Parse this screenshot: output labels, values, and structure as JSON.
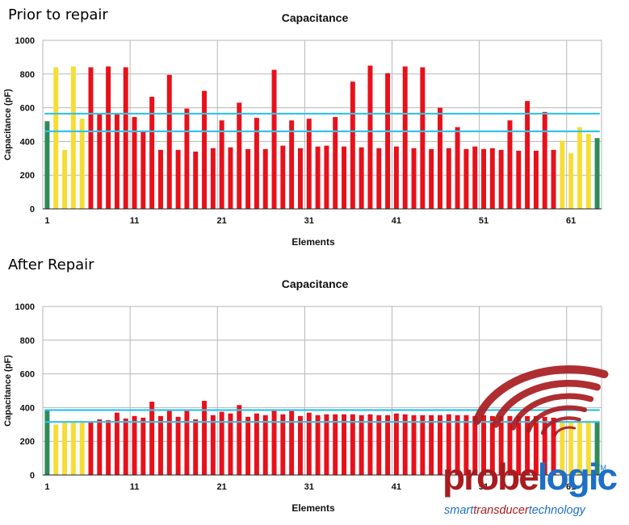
{
  "sections": {
    "top_label": "Prior to repair",
    "bottom_label": "After Repair"
  },
  "colors": {
    "red": "#e8101a",
    "yellow": "#f6dd35",
    "green": "#2e8b57",
    "threshold": "#33c3e8",
    "grid": "#b7b7b7",
    "logo_red": "#a81c1f",
    "logo_blue": "#1e6fc6"
  },
  "logo": {
    "word_part1": "probe",
    "word_part2": "logic",
    "tm": "TM",
    "tagline_part1": "smart",
    "tagline_part2": "transducer",
    "tagline_part3": "technology"
  },
  "chart_data": [
    {
      "type": "bar",
      "title": "Capacitance",
      "xlabel": "Elements",
      "ylabel": "Capacitance (pF)",
      "ylim": [
        0,
        1000
      ],
      "yticks": [
        0,
        200,
        400,
        600,
        800,
        1000
      ],
      "xticks": [
        1,
        11,
        21,
        31,
        41,
        51,
        61
      ],
      "grid": true,
      "thresholds": [
        565,
        460
      ],
      "x": [
        1,
        2,
        3,
        4,
        5,
        6,
        7,
        8,
        9,
        10,
        11,
        12,
        13,
        14,
        15,
        16,
        17,
        18,
        19,
        20,
        21,
        22,
        23,
        24,
        25,
        26,
        27,
        28,
        29,
        30,
        31,
        32,
        33,
        34,
        35,
        36,
        37,
        38,
        39,
        40,
        41,
        42,
        43,
        44,
        45,
        46,
        47,
        48,
        49,
        50,
        51,
        52,
        53,
        54,
        55,
        56,
        57,
        58,
        59,
        60,
        61,
        62,
        63,
        64
      ],
      "values": [
        520,
        840,
        350,
        845,
        535,
        840,
        565,
        845,
        565,
        840,
        545,
        455,
        665,
        350,
        795,
        350,
        595,
        340,
        700,
        360,
        525,
        365,
        630,
        355,
        540,
        355,
        825,
        375,
        525,
        360,
        535,
        370,
        375,
        545,
        370,
        755,
        365,
        850,
        360,
        805,
        370,
        845,
        360,
        840,
        355,
        600,
        360,
        485,
        355,
        370,
        355,
        360,
        350,
        525,
        345,
        640,
        345,
        575,
        350,
        405,
        330,
        485,
        445,
        420
      ],
      "bar_colors": [
        "green",
        "yellow",
        "yellow",
        "yellow",
        "yellow",
        "red",
        "red",
        "red",
        "red",
        "red",
        "red",
        "red",
        "red",
        "red",
        "red",
        "red",
        "red",
        "red",
        "red",
        "red",
        "red",
        "red",
        "red",
        "red",
        "red",
        "red",
        "red",
        "red",
        "red",
        "red",
        "red",
        "red",
        "red",
        "red",
        "red",
        "red",
        "red",
        "red",
        "red",
        "red",
        "red",
        "red",
        "red",
        "red",
        "red",
        "red",
        "red",
        "red",
        "red",
        "red",
        "red",
        "red",
        "red",
        "red",
        "red",
        "red",
        "red",
        "red",
        "red",
        "yellow",
        "yellow",
        "yellow",
        "yellow",
        "green"
      ]
    },
    {
      "type": "bar",
      "title": "Capacitance",
      "xlabel": "Elements",
      "ylabel": "Capacitance (pF)",
      "ylim": [
        0,
        1000
      ],
      "yticks": [
        0,
        200,
        400,
        600,
        800,
        1000
      ],
      "xticks": [
        1,
        11,
        21,
        31,
        41,
        51,
        61
      ],
      "grid": true,
      "thresholds": [
        385,
        315
      ],
      "x": [
        1,
        2,
        3,
        4,
        5,
        6,
        7,
        8,
        9,
        10,
        11,
        12,
        13,
        14,
        15,
        16,
        17,
        18,
        19,
        20,
        21,
        22,
        23,
        24,
        25,
        26,
        27,
        28,
        29,
        30,
        31,
        32,
        33,
        34,
        35,
        36,
        37,
        38,
        39,
        40,
        41,
        42,
        43,
        44,
        45,
        46,
        47,
        48,
        49,
        50,
        51,
        52,
        53,
        54,
        55,
        56,
        57,
        58,
        59,
        60,
        61,
        62,
        63,
        64
      ],
      "values": [
        385,
        300,
        320,
        320,
        310,
        315,
        330,
        325,
        370,
        335,
        350,
        340,
        435,
        350,
        385,
        345,
        380,
        330,
        440,
        355,
        375,
        365,
        415,
        345,
        365,
        355,
        385,
        360,
        380,
        350,
        370,
        355,
        360,
        360,
        360,
        360,
        355,
        360,
        355,
        355,
        365,
        360,
        355,
        355,
        355,
        355,
        360,
        355,
        355,
        350,
        355,
        350,
        350,
        350,
        350,
        350,
        350,
        345,
        340,
        310,
        310,
        310,
        315,
        315
      ],
      "bar_colors": [
        "green",
        "yellow",
        "yellow",
        "yellow",
        "yellow",
        "red",
        "red",
        "red",
        "red",
        "red",
        "red",
        "red",
        "red",
        "red",
        "red",
        "red",
        "red",
        "red",
        "red",
        "red",
        "red",
        "red",
        "red",
        "red",
        "red",
        "red",
        "red",
        "red",
        "red",
        "red",
        "red",
        "red",
        "red",
        "red",
        "red",
        "red",
        "red",
        "red",
        "red",
        "red",
        "red",
        "red",
        "red",
        "red",
        "red",
        "red",
        "red",
        "red",
        "red",
        "red",
        "red",
        "red",
        "red",
        "red",
        "red",
        "red",
        "red",
        "red",
        "red",
        "yellow",
        "yellow",
        "yellow",
        "yellow",
        "green"
      ]
    }
  ]
}
